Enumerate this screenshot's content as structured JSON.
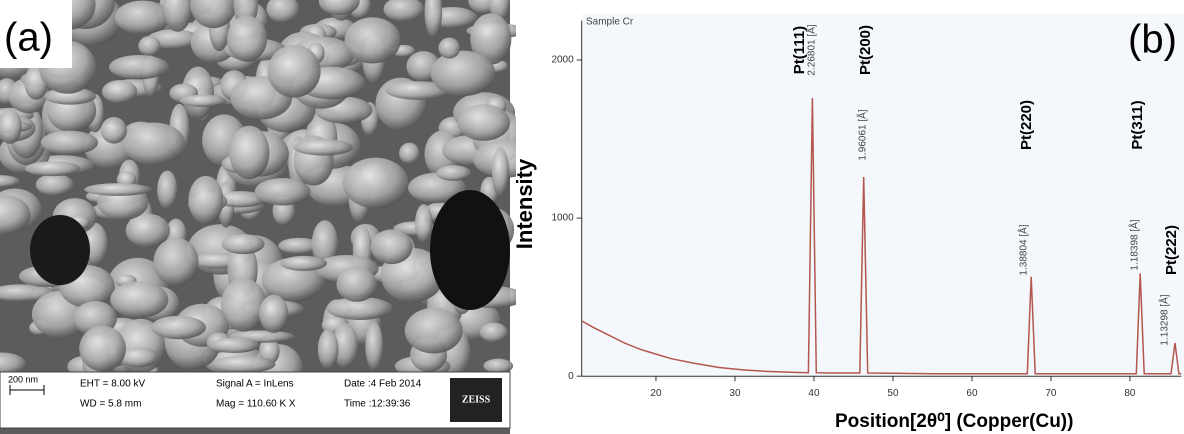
{
  "panel_a": {
    "label": "(a)",
    "scale_bar": "200 nm",
    "eht": "EHT =  8.00 kV",
    "wd": "WD =  5.8 mm",
    "signal": "Signal A = InLens",
    "mag": "Mag = 110.60 K X",
    "date": "Date :4 Feb 2014",
    "time": "Time :12:39:36",
    "brand": "ZEISS"
  },
  "chart_data": {
    "type": "line",
    "title": "Sample Cr",
    "panel_label": "(b)",
    "ylabel": "Intensity",
    "xlabel": "Position[2θ⁰] (Copper(Cu))",
    "x": [
      10.6,
      12,
      14,
      16,
      18,
      20,
      22,
      25,
      28,
      31,
      34,
      37,
      39.3,
      39.8,
      40.3,
      42,
      45.8,
      46.3,
      46.8,
      50,
      55,
      60,
      65,
      67,
      67.5,
      68,
      72,
      76,
      80,
      80.8,
      81.3,
      81.8,
      83,
      85.2,
      85.7,
      86.2,
      86.5
    ],
    "values": [
      350,
      310,
      260,
      210,
      170,
      140,
      110,
      80,
      55,
      40,
      30,
      25,
      22,
      1760,
      22,
      20,
      20,
      1260,
      20,
      18,
      16,
      15,
      15,
      15,
      630,
      15,
      15,
      15,
      15,
      15,
      650,
      15,
      15,
      15,
      210,
      15,
      15
    ],
    "color": "#b4574f",
    "xlim": [
      10.6,
      86.5
    ],
    "ylim": [
      -100,
      2250
    ],
    "xticks": [
      20,
      30,
      40,
      50,
      60,
      70,
      80
    ],
    "yticks": [
      0,
      1000,
      2000
    ],
    "annotations": [
      {
        "label": "Pt(111)",
        "d": "2.26801 [Å]"
      },
      {
        "label": "Pt(200)",
        "d": "1.96061 [Å]"
      },
      {
        "label": "Pt(220)",
        "d": "1.38804 [Å]"
      },
      {
        "label": "Pt(311)",
        "d": "1.18398 [Å]"
      },
      {
        "label": "Pt(222)",
        "d": "1.13298 [Å]"
      }
    ]
  }
}
